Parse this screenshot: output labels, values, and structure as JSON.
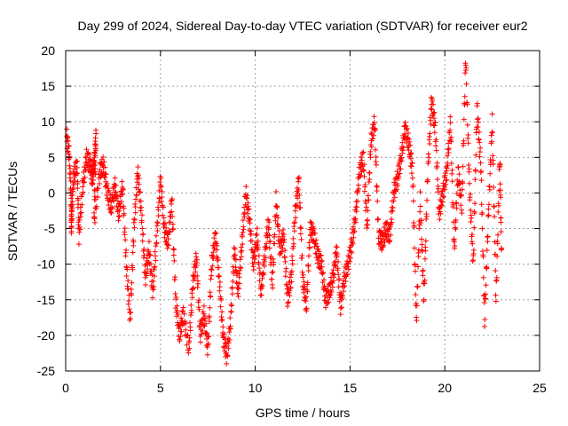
{
  "chart_data": {
    "type": "scatter",
    "title": "Day 299 of 2024, Sidereal Day-to-day VTEC variation (SDTVAR) for receiver eur2",
    "xlabel": "GPS time / hours",
    "ylabel": "SDTVAR / TECUs",
    "xlim": [
      0,
      25
    ],
    "ylim": [
      -25,
      20
    ],
    "xticks": [
      0,
      5,
      10,
      15,
      20,
      25
    ],
    "yticks": [
      -25,
      -20,
      -15,
      -10,
      -5,
      0,
      5,
      10,
      15,
      20
    ],
    "grid": true,
    "marker": "+",
    "series_color": "#ff0000",
    "trace": [
      [
        0.05,
        8
      ],
      [
        0.2,
        5
      ],
      [
        0.3,
        -2
      ],
      [
        0.3,
        -5
      ],
      [
        0.4,
        2
      ],
      [
        0.6,
        4
      ],
      [
        0.7,
        -6
      ],
      [
        0.9,
        1
      ],
      [
        1.1,
        5
      ],
      [
        1.3,
        4
      ],
      [
        1.4,
        2
      ],
      [
        1.5,
        4
      ],
      [
        1.6,
        8
      ],
      [
        1.5,
        -4
      ],
      [
        1.8,
        3
      ],
      [
        2.0,
        4
      ],
      [
        2.2,
        0
      ],
      [
        2.4,
        -2
      ],
      [
        2.6,
        1
      ],
      [
        2.8,
        -3
      ],
      [
        3.0,
        1
      ],
      [
        3.2,
        -10
      ],
      [
        3.4,
        -17.8
      ],
      [
        3.6,
        -5
      ],
      [
        3.8,
        3
      ],
      [
        4.0,
        -3
      ],
      [
        4.2,
        -12
      ],
      [
        4.4,
        -8
      ],
      [
        4.6,
        -14
      ],
      [
        4.8,
        -6
      ],
      [
        5.0,
        2
      ],
      [
        5.2,
        -5
      ],
      [
        5.4,
        -7
      ],
      [
        5.6,
        -1
      ],
      [
        5.8,
        -15
      ],
      [
        6.0,
        -20
      ],
      [
        6.2,
        -17
      ],
      [
        6.5,
        -22
      ],
      [
        6.7,
        -13
      ],
      [
        6.9,
        -9
      ],
      [
        7.1,
        -20
      ],
      [
        7.3,
        -17
      ],
      [
        7.5,
        -22
      ],
      [
        7.7,
        -10
      ],
      [
        7.9,
        -6
      ],
      [
        8.1,
        -12
      ],
      [
        8.3,
        -20
      ],
      [
        8.5,
        -23
      ],
      [
        8.7,
        -18
      ],
      [
        8.9,
        -8
      ],
      [
        9.1,
        -14
      ],
      [
        9.3,
        -7
      ],
      [
        9.5,
        0
      ],
      [
        9.7,
        -4
      ],
      [
        9.9,
        -10
      ],
      [
        10.1,
        -6
      ],
      [
        10.3,
        -14
      ],
      [
        10.5,
        -9
      ],
      [
        10.7,
        -4
      ],
      [
        10.9,
        -13
      ],
      [
        11.1,
        -1
      ],
      [
        11.3,
        -8
      ],
      [
        11.5,
        -6
      ],
      [
        11.7,
        -15
      ],
      [
        11.9,
        -12
      ],
      [
        12.1,
        -3
      ],
      [
        12.3,
        2
      ],
      [
        12.5,
        -12
      ],
      [
        12.7,
        -16
      ],
      [
        12.9,
        -5
      ],
      [
        13.1,
        -6
      ],
      [
        13.3,
        -9
      ],
      [
        13.5,
        -10
      ],
      [
        13.7,
        -15
      ],
      [
        13.9,
        -14
      ],
      [
        14.1,
        -12
      ],
      [
        14.3,
        -8
      ],
      [
        14.5,
        -16
      ],
      [
        14.7,
        -12
      ],
      [
        14.9,
        -10
      ],
      [
        15.1,
        -7
      ],
      [
        15.3,
        -3
      ],
      [
        15.5,
        3
      ],
      [
        15.7,
        5
      ],
      [
        15.9,
        -5
      ],
      [
        16.1,
        7
      ],
      [
        16.3,
        10
      ],
      [
        16.5,
        -6
      ],
      [
        16.7,
        -7
      ],
      [
        16.9,
        -5
      ],
      [
        17.1,
        -6
      ],
      [
        17.3,
        0
      ],
      [
        17.5,
        2
      ],
      [
        17.7,
        5
      ],
      [
        17.9,
        9
      ],
      [
        18.1,
        7
      ],
      [
        18.3,
        3
      ],
      [
        18.5,
        -18
      ],
      [
        18.7,
        -1
      ],
      [
        18.9,
        -15
      ],
      [
        19.1,
        3
      ],
      [
        19.3,
        13
      ],
      [
        19.5,
        9
      ],
      [
        19.7,
        -3
      ],
      [
        19.9,
        0
      ],
      [
        20.1,
        3
      ],
      [
        20.3,
        10
      ],
      [
        20.5,
        -8
      ],
      [
        20.7,
        3
      ],
      [
        20.9,
        -2
      ],
      [
        21.1,
        19
      ],
      [
        21.3,
        1
      ],
      [
        21.5,
        -10
      ],
      [
        21.7,
        12
      ],
      [
        21.9,
        4
      ],
      [
        22.1,
        -18
      ],
      [
        22.3,
        -3
      ],
      [
        22.5,
        10
      ],
      [
        22.7,
        -15
      ],
      [
        22.9,
        5
      ],
      [
        23.0,
        -10
      ]
    ]
  }
}
